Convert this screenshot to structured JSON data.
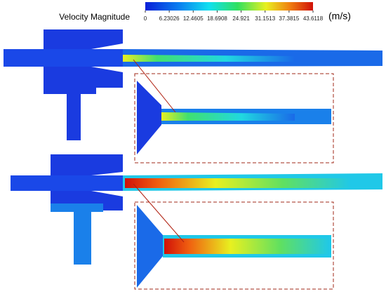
{
  "colorbar": {
    "title": "Velocity Magnitude",
    "unit": "(m/s)",
    "range": [
      0,
      43.6118
    ],
    "ticks": [
      0,
      6.23026,
      12.4605,
      18.6908,
      24.921,
      31.1513,
      37.3815,
      43.6118
    ]
  }
}
